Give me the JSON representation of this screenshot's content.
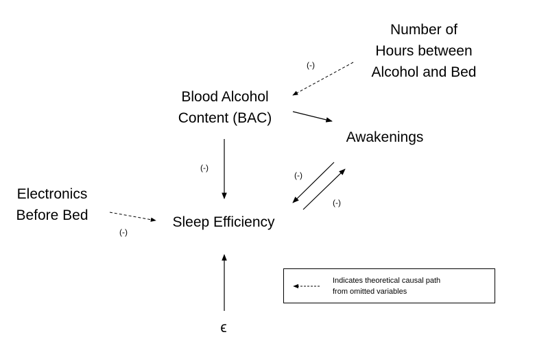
{
  "nodes": {
    "hours": {
      "line1": "Number of",
      "line2": "Hours between",
      "line3": "Alcohol and Bed"
    },
    "bac": {
      "line1": "Blood Alcohol",
      "line2": "Content (BAC)"
    },
    "awakenings": "Awakenings",
    "electronics": {
      "line1": "Electronics",
      "line2": "Before Bed"
    },
    "sleep_efficiency": "Sleep Efficiency",
    "epsilon": "ϵ"
  },
  "edge_signs": {
    "hours_to_bac": "(-)",
    "bac_to_sleep": "(-)",
    "awakenings_to_sleep": "(-)",
    "sleep_to_awakenings": "(-)",
    "electronics_to_sleep": "(-)"
  },
  "legend": {
    "line1": "Indicates theoretical causal path",
    "line2": "from omitted variables"
  }
}
